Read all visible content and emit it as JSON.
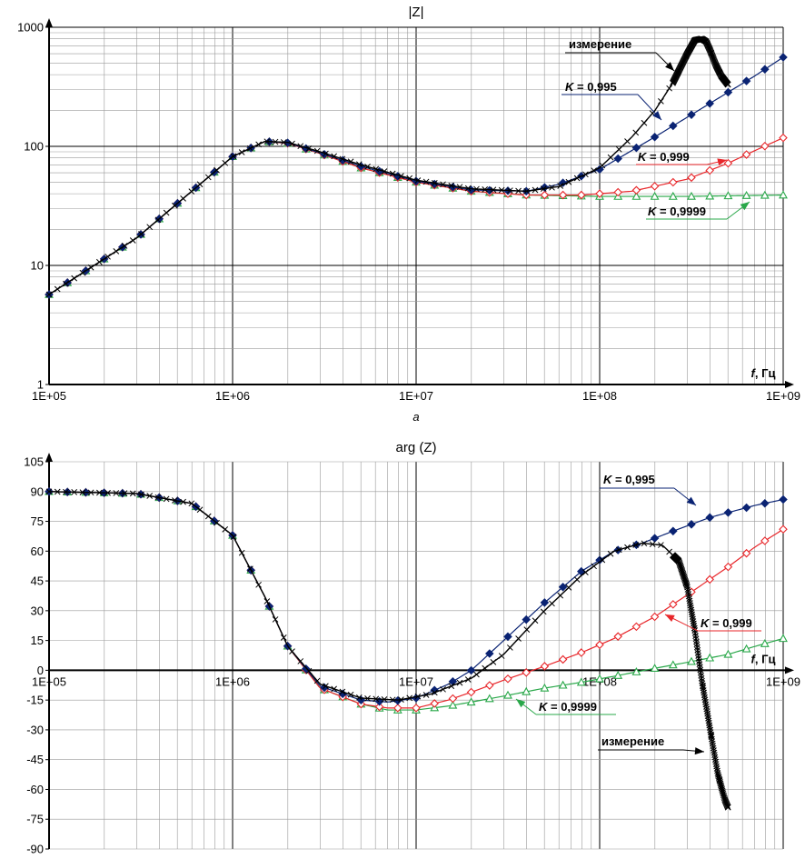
{
  "chart_data": [
    {
      "type": "line",
      "title": "|Z|",
      "xscale": "log",
      "yscale": "log",
      "xlim": [
        100000,
        1000000000
      ],
      "ylim": [
        1,
        1000
      ],
      "xticks": [
        "1E+05",
        "1E+06",
        "1E+07",
        "1E+08",
        "1E+09"
      ],
      "yticks": [
        "1",
        "10",
        "100",
        "1000"
      ],
      "xlabel_italic": "f",
      "xlabel_unit": ", Гц",
      "caption": "а",
      "grid": true,
      "series": [
        {
          "name": "измерение",
          "color": "#000000",
          "marker": "x",
          "x": [
            100000,
            300000,
            1000000,
            1500000,
            2000000,
            3000000,
            5000000,
            10000000,
            20000000,
            40000000,
            60000000,
            100000000,
            150000000,
            200000000,
            250000000,
            300000000,
            330000000,
            360000000,
            380000000,
            400000000,
            430000000,
            460000000,
            500000000
          ],
          "y": [
            5.7,
            17,
            82,
            110,
            108,
            90,
            70,
            52,
            44,
            42,
            46,
            66,
            120,
            200,
            340,
            600,
            780,
            800,
            760,
            640,
            480,
            390,
            330
          ]
        },
        {
          "name": "K = 0,995",
          "color": "#0a2373",
          "marker": "diamond-filled",
          "x": [
            100000,
            300000,
            1000000,
            1500000,
            2000000,
            3000000,
            5000000,
            10000000,
            20000000,
            40000000,
            60000000,
            100000000,
            200000000,
            400000000,
            700000000,
            1000000000
          ],
          "y": [
            5.7,
            17,
            82,
            110,
            107,
            88,
            68,
            51,
            43,
            42,
            48,
            64,
            120,
            230,
            390,
            560
          ]
        },
        {
          "name": "K = 0,999",
          "color": "#e8262a",
          "marker": "diamond-open",
          "x": [
            100000,
            300000,
            1000000,
            1500000,
            2000000,
            3000000,
            5000000,
            10000000,
            20000000,
            40000000,
            80000000,
            150000000,
            300000000,
            500000000,
            700000000,
            1000000000
          ],
          "y": [
            5.7,
            17,
            82,
            110,
            106,
            87,
            66,
            50,
            42,
            39,
            39,
            42,
            53,
            72,
            92,
            118
          ]
        },
        {
          "name": "K = 0,9999",
          "color": "#2aa84a",
          "marker": "triangle-open",
          "x": [
            100000,
            300000,
            1000000,
            1500000,
            2000000,
            3000000,
            5000000,
            10000000,
            20000000,
            40000000,
            100000000,
            300000000,
            1000000000
          ],
          "y": [
            5.7,
            17,
            82,
            110,
            106,
            87,
            66,
            50,
            42,
            39,
            38,
            38,
            39
          ]
        }
      ],
      "annotations": [
        {
          "text": "измерение",
          "color": "#000000"
        },
        {
          "text_italic": "K",
          "text": " = 0,995",
          "color": "#0a2373"
        },
        {
          "text_italic": "K",
          "text": " = 0,999",
          "color": "#e8262a"
        },
        {
          "text_italic": "K",
          "text": " = 0,9999",
          "color": "#2aa84a"
        }
      ]
    },
    {
      "type": "line",
      "title": "arg (Z)",
      "xscale": "log",
      "xlim": [
        100000,
        1000000000
      ],
      "ylim": [
        -90,
        105
      ],
      "xticks": [
        "1E+05",
        "1E+06",
        "1E+07",
        "1E+08",
        "1E+09"
      ],
      "yticks": [
        "-90",
        "-75",
        "-60",
        "-45",
        "-30",
        "-15",
        "0",
        "15",
        "30",
        "45",
        "60",
        "75",
        "90",
        "105"
      ],
      "xlabel_italic": "f",
      "xlabel_unit": ", Гц",
      "grid": true,
      "series": [
        {
          "name": "измерение",
          "color": "#000000",
          "marker": "x",
          "x": [
            100000,
            300000,
            600000,
            1000000,
            1500000,
            2000000,
            3000000,
            5000000,
            8000000,
            12000000,
            20000000,
            30000000,
            50000000,
            80000000,
            120000000,
            170000000,
            220000000,
            270000000,
            300000000,
            330000000,
            360000000,
            400000000,
            440000000,
            480000000,
            500000000
          ],
          "y": [
            90,
            89,
            84,
            68,
            37,
            12,
            -7,
            -14,
            -15,
            -12,
            -4,
            8,
            30,
            48,
            60,
            64,
            63,
            55,
            42,
            20,
            -5,
            -30,
            -52,
            -65,
            -69
          ]
        },
        {
          "name": "K = 0,995",
          "color": "#0a2373",
          "marker": "diamond-filled",
          "x": [
            100000,
            300000,
            600000,
            1000000,
            1500000,
            2000000,
            3000000,
            5000000,
            7000000,
            10000000,
            15000000,
            20000000,
            30000000,
            50000000,
            80000000,
            120000000,
            170000000,
            250000000,
            400000000,
            700000000,
            1000000000
          ],
          "y": [
            90,
            89,
            84,
            68,
            37,
            12,
            -8,
            -15,
            -16,
            -14,
            -7,
            0,
            15,
            34,
            50,
            60,
            64,
            70,
            77,
            83,
            86
          ]
        },
        {
          "name": "K = 0,999",
          "color": "#e8262a",
          "marker": "diamond-open",
          "x": [
            100000,
            300000,
            600000,
            1000000,
            1500000,
            2000000,
            3000000,
            5000000,
            7000000,
            10000000,
            15000000,
            20000000,
            30000000,
            50000000,
            80000000,
            120000000,
            200000000,
            300000000,
            500000000,
            700000000,
            1000000000
          ],
          "y": [
            90,
            89,
            84,
            68,
            37,
            12,
            -9,
            -17,
            -19,
            -19,
            -15,
            -11,
            -5,
            2,
            9,
            16,
            27,
            38,
            52,
            62,
            71
          ]
        },
        {
          "name": "K = 0,9999",
          "color": "#2aa84a",
          "marker": "triangle-open",
          "x": [
            100000,
            300000,
            600000,
            1000000,
            1500000,
            2000000,
            3000000,
            5000000,
            7000000,
            10000000,
            15000000,
            20000000,
            30000000,
            50000000,
            80000000,
            120000000,
            200000000,
            300000000,
            500000000,
            700000000,
            1000000000
          ],
          "y": [
            90,
            89,
            84,
            68,
            37,
            12,
            -9,
            -17,
            -20,
            -20,
            -18,
            -16,
            -13,
            -9,
            -6,
            -3,
            1,
            4,
            8,
            12,
            16
          ]
        }
      ],
      "annotations": [
        {
          "text_italic": "K",
          "text": " = 0,995",
          "color": "#0a2373"
        },
        {
          "text_italic": "K",
          "text": " = 0,999",
          "color": "#e8262a"
        },
        {
          "text_italic": "K",
          "text": " = 0,9999",
          "color": "#2aa84a"
        },
        {
          "text": "измерение",
          "color": "#000000"
        }
      ]
    }
  ]
}
